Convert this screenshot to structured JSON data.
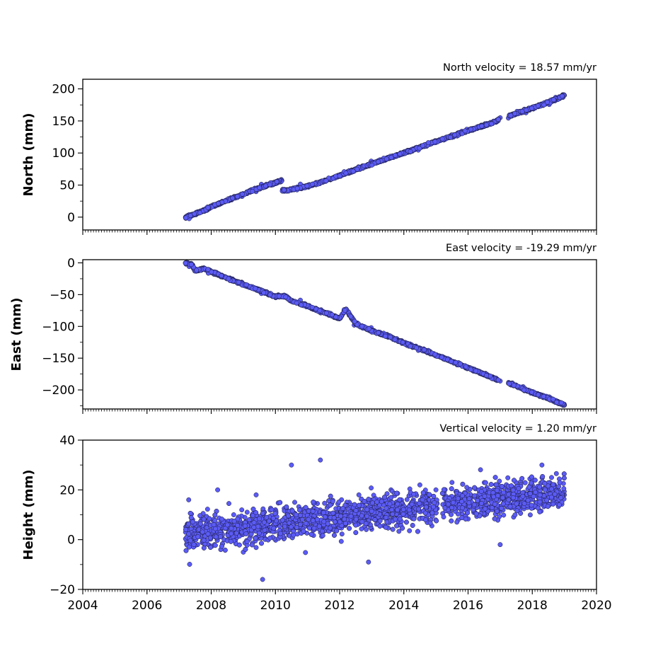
{
  "chart_data": [
    {
      "type": "scatter",
      "annotation": "North velocity = 18.57 mm/yr",
      "ylabel": "North (mm)",
      "xlim": [
        2004,
        2020
      ],
      "ylim": [
        -20,
        215
      ],
      "yticks": [
        0,
        50,
        100,
        150,
        200
      ],
      "xticks": [
        2004,
        2006,
        2008,
        2010,
        2012,
        2014,
        2016,
        2018,
        2020
      ],
      "show_xtick_labels": false,
      "point_color": "#5b5bf5",
      "series": [
        {
          "x": [
            2007.2,
            2007.4,
            2007.6,
            2007.8,
            2008.0,
            2008.2,
            2008.4,
            2008.6,
            2008.8,
            2009.0,
            2009.2,
            2009.4,
            2009.6,
            2009.8,
            2010.0,
            2010.2,
            2010.25,
            2010.4,
            2010.6,
            2010.8,
            2011.0,
            2011.5,
            2012.0,
            2012.5,
            2013.0,
            2013.5,
            2014.0,
            2014.5,
            2015.0,
            2015.5,
            2016.0,
            2016.5,
            2016.9,
            2017.0,
            2017.3,
            2017.6,
            2018.0,
            2018.5,
            2018.8,
            2019.0
          ],
          "y": [
            0,
            3,
            7,
            11,
            16,
            20,
            24,
            28,
            32,
            36,
            40,
            44,
            47,
            51,
            54,
            57,
            42,
            42,
            44,
            46,
            48,
            56,
            65,
            74,
            83,
            92,
            100,
            109,
            118,
            126,
            135,
            143,
            150,
            155,
            158,
            163,
            170,
            179,
            185,
            190
          ]
        }
      ]
    },
    {
      "type": "scatter",
      "annotation": "East velocity = -19.29 mm/yr",
      "ylabel": "East (mm)",
      "xlim": [
        2004,
        2020
      ],
      "ylim": [
        -230,
        5
      ],
      "yticks": [
        0,
        -50,
        -100,
        -150,
        -200
      ],
      "xticks": [
        2004,
        2006,
        2008,
        2010,
        2012,
        2014,
        2016,
        2018,
        2020
      ],
      "show_xtick_labels": false,
      "point_color": "#5b5bf5",
      "series": [
        {
          "x": [
            2007.2,
            2007.4,
            2007.5,
            2007.8,
            2008.0,
            2008.5,
            2009.0,
            2009.5,
            2010.0,
            2010.3,
            2010.5,
            2011.0,
            2011.5,
            2012.0,
            2012.2,
            2012.5,
            2013.0,
            2013.5,
            2014.0,
            2014.5,
            2015.0,
            2015.5,
            2016.0,
            2016.5,
            2017.0,
            2017.3,
            2017.6,
            2018.0,
            2018.5,
            2019.0
          ],
          "y": [
            0,
            -3,
            -12,
            -9,
            -14,
            -24,
            -34,
            -43,
            -53,
            -52,
            -60,
            -68,
            -78,
            -87,
            -73,
            -96,
            -107,
            -115,
            -126,
            -135,
            -145,
            -155,
            -165,
            -175,
            -186,
            -190,
            -196,
            -204,
            -213,
            -224
          ]
        }
      ]
    },
    {
      "type": "scatter",
      "annotation": "Vertical velocity = 1.20 mm/yr",
      "ylabel": "Height (mm)",
      "xlim": [
        2004,
        2020
      ],
      "ylim": [
        -20,
        40
      ],
      "yticks": [
        -20,
        0,
        20,
        40
      ],
      "xticks": [
        2004,
        2006,
        2008,
        2010,
        2012,
        2014,
        2016,
        2018,
        2020
      ],
      "show_xtick_labels": true,
      "point_color": "#5b5bf5",
      "series": [
        {
          "x": [
            2007.2,
            2007.3,
            2007.5,
            2007.7,
            2008.0,
            2008.2,
            2008.4,
            2008.7,
            2009.0,
            2009.2,
            2009.4,
            2009.6,
            2009.8,
            2010.0,
            2010.3,
            2010.5,
            2010.6,
            2010.9,
            2011.2,
            2011.4,
            2011.6,
            2012.0,
            2012.3,
            2012.6,
            2012.9,
            2013.0,
            2013.3,
            2013.6,
            2013.9,
            2014.2,
            2014.5,
            2014.8,
            2015.0,
            2015.5,
            2015.9,
            2016.0,
            2016.4,
            2016.8,
            2017.0,
            2017.4,
            2017.8,
            2018.0,
            2018.3,
            2018.6,
            2018.8,
            2019.0
          ],
          "y": [
            3,
            16,
            1,
            8,
            2,
            20,
            0,
            10,
            -5,
            4,
            18,
            -16,
            5,
            12,
            6,
            30,
            15,
            10,
            5,
            32,
            8,
            12,
            15,
            18,
            -9,
            14,
            12,
            20,
            16,
            14,
            22,
            18,
            20,
            23,
            16,
            20,
            17,
            20,
            -2,
            18,
            14,
            22,
            30,
            25,
            20,
            18
          ]
        }
      ]
    }
  ]
}
